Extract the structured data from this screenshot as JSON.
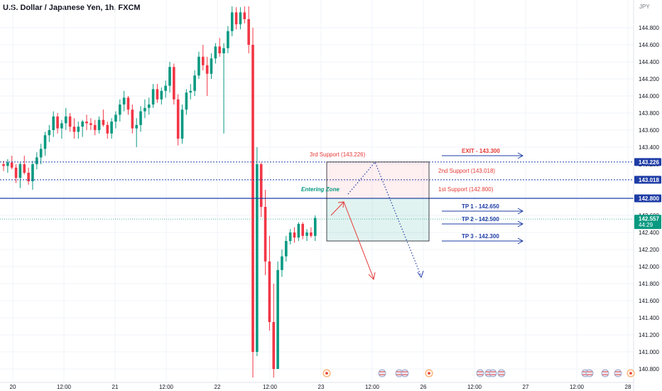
{
  "symbol_title": "U.S. Dollar / Japanese Yen, 1h, FXCM",
  "currency": "JPY",
  "price_scale": {
    "ticks": [
      "140.800",
      "141.000",
      "141.200",
      "141.400",
      "141.600",
      "141.800",
      "142.000",
      "142.200",
      "142.400",
      "142.600",
      "142.800",
      "143.000",
      "143.200",
      "143.400",
      "143.600",
      "143.800",
      "144.000",
      "144.200",
      "144.400",
      "144.600",
      "144.800"
    ],
    "tags": [
      {
        "label": "143.226",
        "color": "#1e3ca6"
      },
      {
        "label": "143.018",
        "color": "#1e3ca6"
      },
      {
        "label": "142.800",
        "color": "#1e3ca6"
      },
      {
        "label": "142.557",
        "countdown": "44:29",
        "color": "#089981"
      }
    ]
  },
  "time_labels": [
    "20",
    "12:00",
    "21",
    "12:00",
    "22",
    "12:00",
    "23",
    "12:00",
    "26",
    "12:00",
    "27",
    "12:00",
    "28"
  ],
  "annotations": {
    "third_support": "3rd Support (143.226)",
    "second_support": "2nd Support (143.018)",
    "first_support": "1st Support (142.800)",
    "entering_zone": "Entering Zone",
    "exit": "EXIT - 143.300",
    "tp1": "TP 1 - 142.650",
    "tp2": "TP 2 - 142.500",
    "tp3": "TP 3 - 142.300"
  },
  "colors": {
    "up": "#089981",
    "down": "#f23645",
    "level_line": "#1e3ca6",
    "annotation_red": "#e53935",
    "arrow_blue": "#1e3ca6"
  },
  "chart_data": {
    "type": "candlestick",
    "title": "U.S. Dollar / Japanese Yen, 1h, FXCM",
    "ylim": [
      140.7,
      145.05
    ],
    "levels": [
      143.226,
      143.018,
      142.8
    ],
    "last_price": 142.557,
    "candles": [
      [
        143.2,
        143.24,
        143.12,
        143.18
      ],
      [
        143.18,
        143.26,
        143.1,
        143.22
      ],
      [
        143.22,
        143.3,
        143.14,
        143.16
      ],
      [
        143.16,
        143.2,
        142.98,
        143.04
      ],
      [
        143.04,
        143.22,
        142.92,
        143.2
      ],
      [
        143.2,
        143.3,
        143.08,
        143.1
      ],
      [
        143.1,
        143.16,
        142.96,
        143.0
      ],
      [
        143.0,
        143.24,
        142.9,
        143.2
      ],
      [
        143.2,
        143.34,
        143.14,
        143.28
      ],
      [
        143.28,
        143.44,
        143.2,
        143.38
      ],
      [
        143.38,
        143.58,
        143.3,
        143.54
      ],
      [
        143.54,
        143.66,
        143.46,
        143.6
      ],
      [
        143.6,
        143.82,
        143.52,
        143.76
      ],
      [
        143.76,
        143.8,
        143.56,
        143.62
      ],
      [
        143.62,
        143.72,
        143.5,
        143.68
      ],
      [
        143.68,
        143.86,
        143.6,
        143.76
      ],
      [
        143.76,
        143.8,
        143.58,
        143.64
      ],
      [
        143.64,
        143.74,
        143.5,
        143.58
      ],
      [
        143.58,
        143.7,
        143.5,
        143.64
      ],
      [
        143.64,
        143.72,
        143.52,
        143.7
      ],
      [
        143.7,
        143.78,
        143.6,
        143.68
      ],
      [
        143.68,
        143.74,
        143.6,
        143.66
      ],
      [
        143.66,
        143.72,
        143.54,
        143.6
      ],
      [
        143.6,
        143.76,
        143.56,
        143.72
      ],
      [
        143.72,
        143.84,
        143.64,
        143.66
      ],
      [
        143.66,
        143.7,
        143.5,
        143.56
      ],
      [
        143.56,
        143.74,
        143.5,
        143.7
      ],
      [
        143.7,
        143.82,
        143.62,
        143.78
      ],
      [
        143.78,
        143.96,
        143.7,
        143.9
      ],
      [
        143.9,
        144.06,
        143.82,
        143.98
      ],
      [
        143.98,
        144.0,
        143.78,
        143.84
      ],
      [
        143.84,
        143.9,
        143.56,
        143.62
      ],
      [
        143.62,
        143.74,
        143.4,
        143.66
      ],
      [
        143.66,
        143.88,
        143.58,
        143.82
      ],
      [
        143.82,
        143.96,
        143.74,
        143.86
      ],
      [
        143.86,
        143.98,
        143.78,
        143.9
      ],
      [
        143.9,
        144.14,
        143.86,
        144.08
      ],
      [
        144.08,
        144.14,
        143.92,
        143.96
      ],
      [
        143.96,
        144.1,
        143.9,
        144.06
      ],
      [
        144.06,
        144.18,
        143.98,
        144.12
      ],
      [
        144.12,
        144.4,
        144.04,
        144.34
      ],
      [
        144.34,
        144.38,
        143.9,
        143.96
      ],
      [
        143.96,
        144.02,
        143.42,
        143.5
      ],
      [
        143.5,
        143.9,
        143.44,
        143.84
      ],
      [
        143.84,
        144.08,
        143.78,
        144.04
      ],
      [
        144.04,
        144.14,
        143.96,
        144.06
      ],
      [
        144.06,
        144.3,
        144.0,
        144.24
      ],
      [
        144.24,
        144.52,
        144.2,
        144.46
      ],
      [
        144.46,
        144.6,
        144.3,
        144.36
      ],
      [
        144.36,
        144.46,
        144.0,
        144.26
      ],
      [
        144.26,
        144.5,
        144.2,
        144.44
      ],
      [
        144.44,
        144.62,
        144.38,
        144.58
      ],
      [
        144.58,
        144.68,
        144.46,
        144.5
      ],
      [
        144.5,
        144.62,
        143.56,
        144.56
      ],
      [
        144.56,
        144.82,
        144.5,
        144.76
      ],
      [
        144.76,
        145.05,
        144.7,
        144.98
      ],
      [
        144.98,
        145.04,
        144.78,
        144.84
      ],
      [
        144.84,
        145.04,
        144.78,
        144.98
      ],
      [
        144.98,
        145.05,
        144.85,
        144.9
      ],
      [
        144.9,
        145.05,
        144.5,
        144.6
      ],
      [
        144.6,
        144.8,
        140.7,
        141.0
      ],
      [
        141.0,
        143.4,
        140.95,
        143.2
      ],
      [
        143.2,
        143.22,
        142.58,
        142.7
      ],
      [
        142.7,
        142.9,
        141.9,
        142.06
      ],
      [
        142.06,
        142.36,
        141.25,
        141.35
      ],
      [
        141.35,
        141.8,
        140.7,
        140.8
      ],
      [
        140.8,
        142.06,
        140.8,
        141.96
      ],
      [
        141.96,
        142.2,
        141.88,
        142.12
      ],
      [
        142.12,
        142.36,
        142.06,
        142.3
      ],
      [
        142.3,
        142.44,
        142.26,
        142.4
      ],
      [
        142.4,
        142.46,
        142.28,
        142.34
      ],
      [
        142.34,
        142.52,
        142.3,
        142.5
      ],
      [
        142.5,
        142.52,
        142.32,
        142.36
      ],
      [
        142.36,
        142.44,
        142.3,
        142.4
      ],
      [
        142.4,
        142.46,
        142.34,
        142.36
      ],
      [
        142.36,
        142.6,
        142.3,
        142.57
      ]
    ],
    "projection": {
      "zone": {
        "top": 143.226,
        "bottom": 142.3
      },
      "exit_target": 143.3,
      "tp_targets": [
        142.65,
        142.5,
        142.3
      ]
    }
  }
}
